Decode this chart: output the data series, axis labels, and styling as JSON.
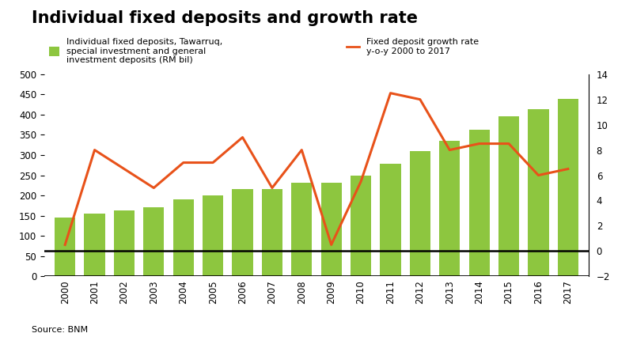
{
  "title": "Individual fixed deposits and growth rate",
  "years": [
    2000,
    2001,
    2002,
    2003,
    2004,
    2005,
    2006,
    2007,
    2008,
    2009,
    2010,
    2011,
    2012,
    2013,
    2014,
    2015,
    2016,
    2017
  ],
  "bar_values": [
    145,
    155,
    163,
    170,
    190,
    200,
    215,
    215,
    232,
    232,
    250,
    278,
    310,
    335,
    362,
    395,
    413,
    438
  ],
  "growth_rate": [
    0.5,
    8.0,
    6.5,
    5.0,
    7.0,
    7.0,
    9.0,
    5.0,
    8.0,
    0.5,
    5.5,
    12.5,
    12.0,
    8.0,
    8.5,
    8.5,
    6.0,
    6.5
  ],
  "bar_color": "#8dc63f",
  "line_color": "#e8521a",
  "bar_label": "Individual fixed deposits, Tawarruq,\nspecial investment and general\ninvestment deposits (RM bil)",
  "line_label": "Fixed deposit growth rate\ny-o-y 2000 to 2017",
  "source": "Source: BNM",
  "ylim_left": [
    0,
    500
  ],
  "ylim_right": [
    -2,
    14
  ],
  "yticks_left": [
    0,
    50,
    100,
    150,
    200,
    250,
    300,
    350,
    400,
    450,
    500
  ],
  "yticks_right": [
    -2,
    0,
    2,
    4,
    6,
    8,
    10,
    12,
    14
  ],
  "background_color": "#ffffff",
  "title_fontsize": 15,
  "tick_fontsize": 8.5,
  "legend_fontsize": 8,
  "source_fontsize": 8,
  "figsize": [
    8.0,
    4.26
  ]
}
